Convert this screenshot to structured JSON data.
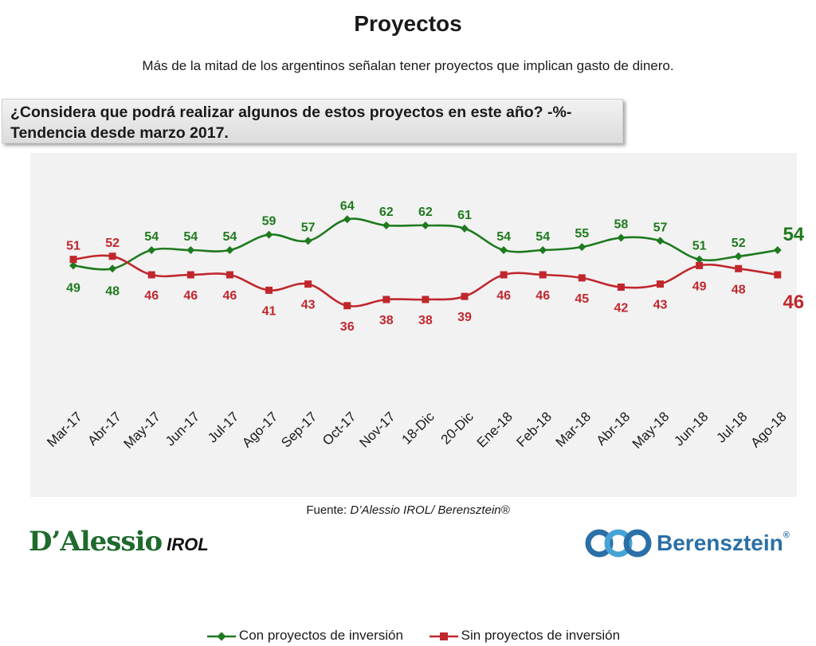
{
  "title": "Proyectos",
  "subtitle": "Más de la mitad de los argentinos señalan tener proyectos que implican gasto de dinero.",
  "question": "¿Considera que podrá realizar algunos de estos proyectos en este año? -%- Tendencia desde marzo 2017.",
  "source_label": "Fuente: ",
  "source_italic": "D’Alessio IROL/ Berensztein®",
  "logos": {
    "dalessio": "D’Alessio",
    "irol": "IROL",
    "berensztein": "Berensztein",
    "registered": "®"
  },
  "chart_data": {
    "type": "line",
    "categories": [
      "Mar-17",
      "Abr-17",
      "May-17",
      "Jun-17",
      "Jul-17",
      "Ago-17",
      "Sep-17",
      "Oct-17",
      "Nov-17",
      "18-Dic",
      "20-Dic",
      "Ene-18",
      "Feb-18",
      "Mar-18",
      "Abr-18",
      "May-18",
      "Jun-18",
      "Jul-18",
      "Ago-18"
    ],
    "series": [
      {
        "name": "Con proyectos de inversión",
        "color": "#1e7a1e",
        "values": [
          49,
          48,
          54,
          54,
          54,
          59,
          57,
          64,
          62,
          62,
          61,
          54,
          54,
          55,
          58,
          57,
          51,
          52,
          54
        ]
      },
      {
        "name": "Sin proyectos de inversión",
        "color": "#c0272d",
        "values": [
          51,
          52,
          46,
          46,
          46,
          41,
          43,
          36,
          38,
          38,
          39,
          46,
          46,
          45,
          42,
          43,
          49,
          48,
          46
        ]
      }
    ],
    "ylim": [
      30,
      70
    ],
    "grid": false,
    "legend": "bottom"
  }
}
